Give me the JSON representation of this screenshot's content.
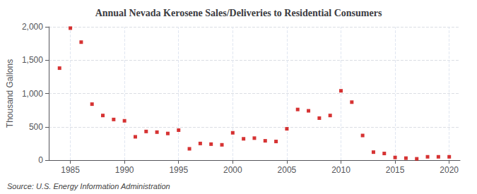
{
  "chart_data": {
    "type": "scatter",
    "title": "Annual Nevada Kerosene Sales/Deliveries to Residential Consumers",
    "ylabel": "Thousand Gallons",
    "source": "Source: U.S. Energy Information Administration",
    "color": "#cc0000",
    "marker": "square",
    "grid": true,
    "x": [
      1984,
      1985,
      1986,
      1987,
      1988,
      1989,
      1990,
      1991,
      1992,
      1993,
      1994,
      1995,
      1996,
      1997,
      1998,
      1999,
      2000,
      2001,
      2002,
      2003,
      2004,
      2005,
      2006,
      2007,
      2008,
      2009,
      2010,
      2011,
      2012,
      2013,
      2014,
      2015,
      2016,
      2017,
      2018,
      2019,
      2020
    ],
    "values": [
      1380,
      1980,
      1770,
      840,
      670,
      610,
      590,
      350,
      430,
      420,
      400,
      450,
      170,
      250,
      240,
      230,
      410,
      320,
      330,
      290,
      280,
      470,
      760,
      740,
      630,
      670,
      1040,
      870,
      370,
      120,
      100,
      40,
      30,
      20,
      50,
      50,
      50
    ],
    "xlim": [
      1983,
      2021
    ],
    "ylim": [
      0,
      2000
    ],
    "xticks": [
      1985,
      1990,
      1995,
      2000,
      2005,
      2010,
      2015,
      2020
    ],
    "yticks": [
      0,
      500,
      {
        "value": 1000,
        "label": "1,000"
      },
      {
        "value": 1500,
        "label": "1,500"
      },
      {
        "value": 2000,
        "label": "2,000"
      }
    ]
  }
}
